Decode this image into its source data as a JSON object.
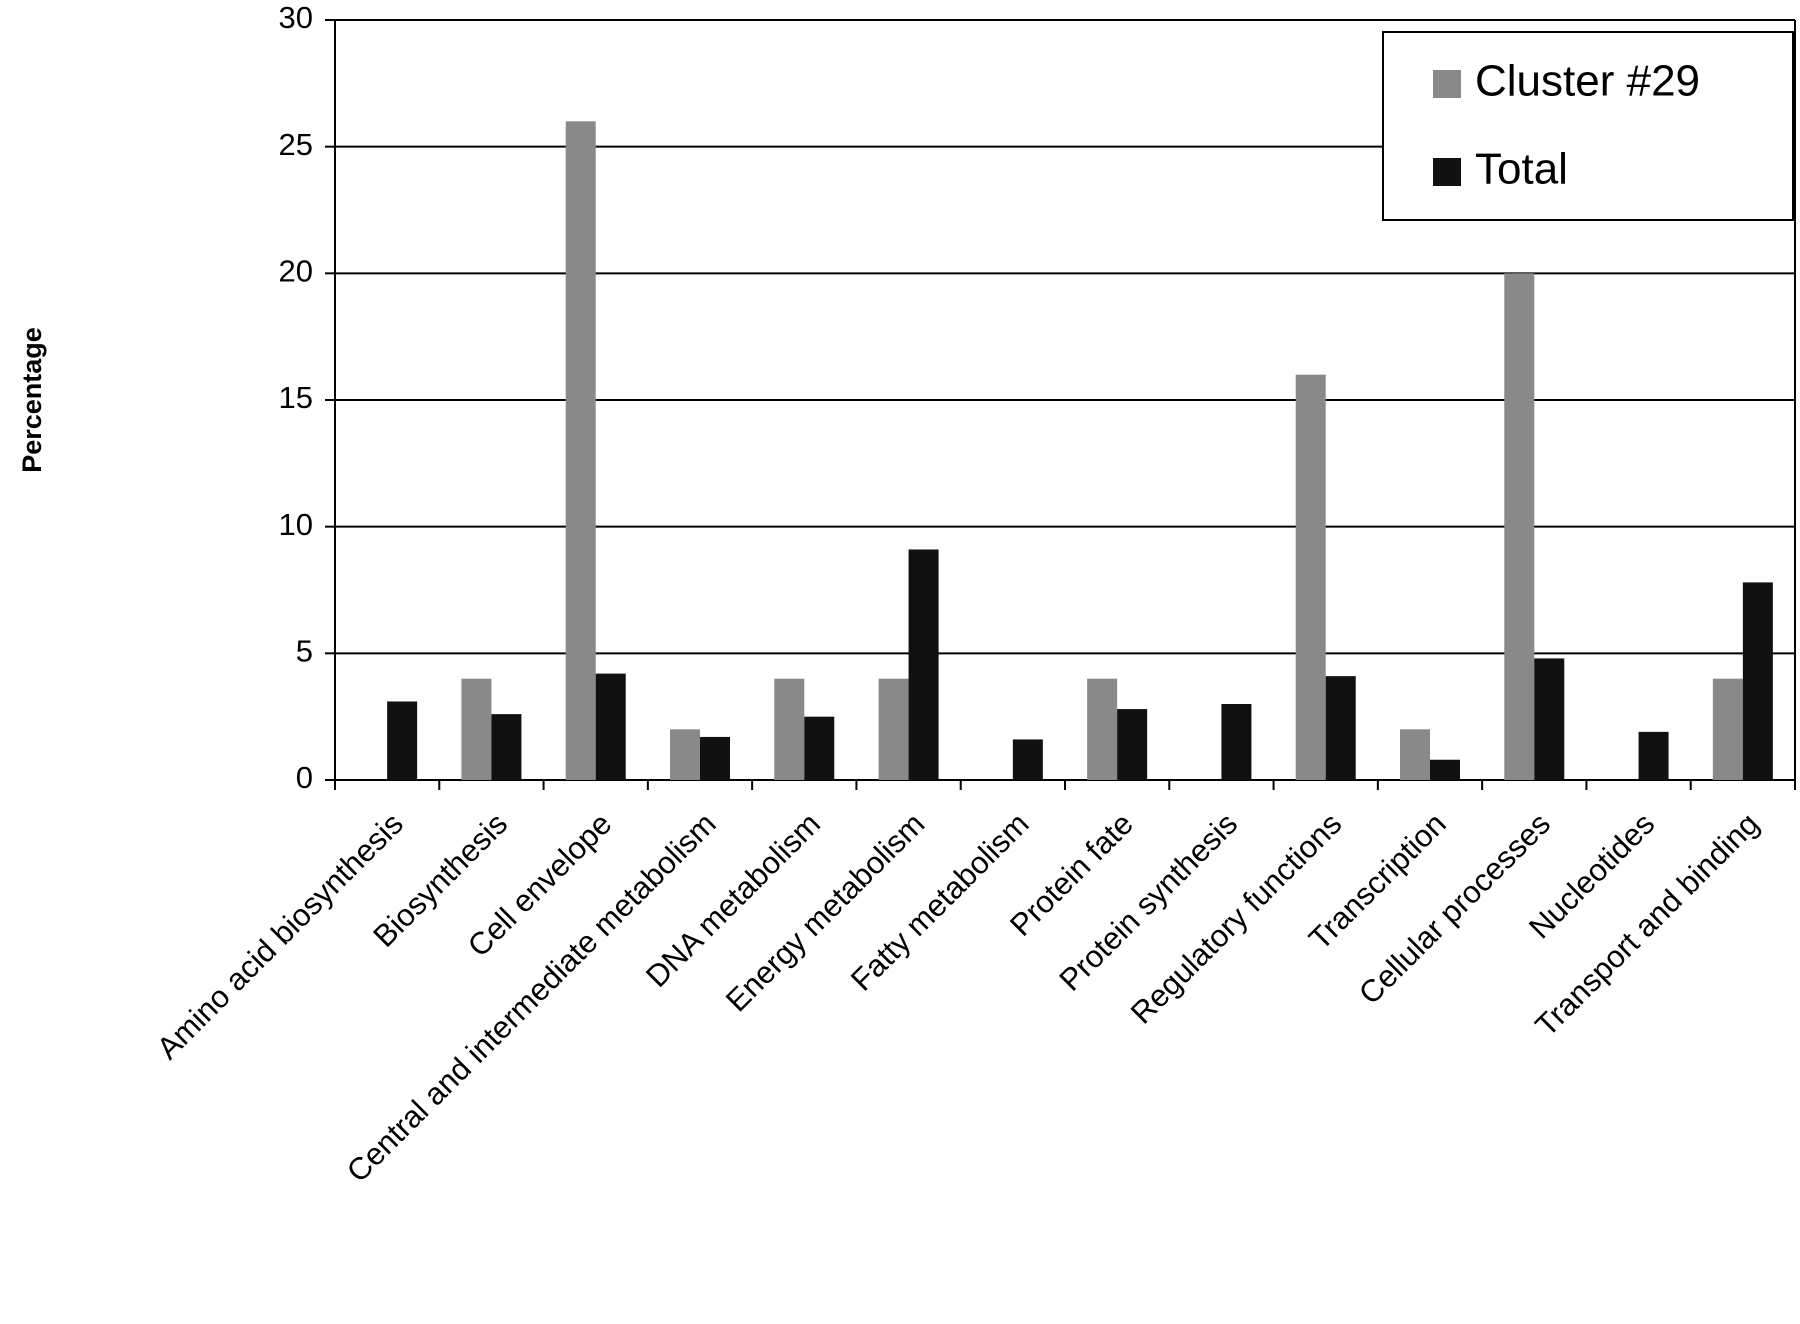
{
  "chart_data": {
    "type": "bar",
    "y_label": "Percentage",
    "categories": [
      "Amino acid biosynthesis",
      "Biosynthesis",
      "Cell envelope",
      "Central and intermediate metabolism",
      "DNA metabolism",
      "Energy metabolism",
      "Fatty metabolism",
      "Protein fate",
      "Protein synthesis",
      "Regulatory functions",
      "Transcription",
      "Cellular processes",
      "Nucleotides",
      "Transport and binding"
    ],
    "series": [
      {
        "name": "Cluster #29",
        "color": "#898989",
        "values": [
          0,
          4,
          26,
          2,
          4,
          4,
          0,
          4,
          0,
          16,
          2,
          20,
          0,
          4
        ]
      },
      {
        "name": "Total",
        "color": "#111111",
        "values": [
          3.1,
          2.6,
          4.2,
          1.7,
          2.5,
          9.1,
          1.6,
          2.8,
          3.0,
          4.1,
          0.8,
          4.8,
          1.9,
          7.8
        ]
      }
    ],
    "ylim": [
      0,
      30
    ],
    "yticks": [
      0,
      5,
      10,
      15,
      20,
      25,
      30
    ],
    "grid": true,
    "legend": "upper right"
  }
}
